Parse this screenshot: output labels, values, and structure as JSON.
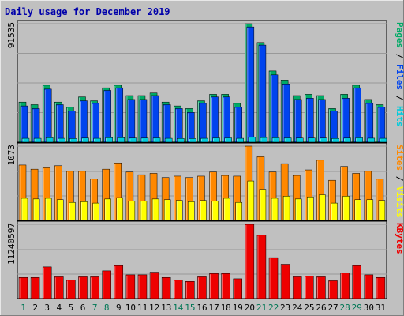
{
  "chart_data": {
    "type": "bar",
    "title": "Daily usage for December 2019",
    "categories": [
      "1",
      "2",
      "3",
      "4",
      "5",
      "6",
      "7",
      "8",
      "9",
      "10",
      "11",
      "12",
      "13",
      "14",
      "15",
      "16",
      "17",
      "18",
      "19",
      "20",
      "21",
      "22",
      "23",
      "24",
      "25",
      "26",
      "27",
      "28",
      "29",
      "30",
      "31"
    ],
    "weekend_days": [
      "1",
      "7",
      "8",
      "14",
      "15",
      "21",
      "22",
      "28",
      "29"
    ],
    "colors": {
      "background": "#c0c0c0",
      "hits": "#00ccdd",
      "files": "#0044ee",
      "pages": "#00aa66",
      "visits": "#ffff00",
      "sites": "#ff8800",
      "kbytes": "#ee0000",
      "title": "#0000aa",
      "weekend_label": "#007755",
      "weekday_label": "#000000"
    },
    "panels": [
      {
        "name": "hits-files-pages",
        "ymax_label": "91535",
        "ylim": [
          0,
          91535
        ],
        "side_labels": [
          {
            "text": "Pages",
            "color": "#00aa66"
          },
          {
            "text": " / ",
            "color": "#000000"
          },
          {
            "text": "Files",
            "color": "#0044ee"
          },
          {
            "text": " / ",
            "color": "#000000"
          },
          {
            "text": "Hits",
            "color": "#00ccdd"
          }
        ],
        "series": [
          {
            "name": "Pages",
            "values": [
              31000,
              29000,
              44000,
              31000,
              27000,
              35000,
              32000,
              42000,
              44000,
              36000,
              36000,
              38000,
              31000,
              28000,
              26000,
              32000,
              37000,
              37000,
              30000,
              91535,
              77000,
              55000,
              48000,
              36000,
              37000,
              36000,
              26000,
              37000,
              44000,
              33000,
              29000
            ]
          },
          {
            "name": "Files",
            "values": [
              28000,
              26000,
              41000,
              29000,
              24000,
              32000,
              30000,
              40000,
              42000,
              33000,
              33000,
              36000,
              29000,
              26000,
              23000,
              30000,
              35000,
              35000,
              27000,
              89000,
              75000,
              52000,
              45000,
              33000,
              34000,
              33000,
              24000,
              34000,
              42000,
              30000,
              27000
            ]
          },
          {
            "name": "Hits",
            "values": [
              3000,
              3000,
              3500,
              3000,
              2800,
              3200,
              3000,
              3500,
              3500,
              3200,
              3200,
              3300,
              3000,
              2900,
              2800,
              3000,
              3300,
              3300,
              3000,
              3800,
              3600,
              3400,
              3300,
              3200,
              3200,
              3200,
              2900,
              3200,
              3400,
              3100,
              3000
            ]
          }
        ]
      },
      {
        "name": "visits-sites",
        "ymax_label": "1073",
        "ylim": [
          0,
          1073
        ],
        "side_labels": [
          {
            "text": "Sites",
            "color": "#ff8800"
          },
          {
            "text": " / ",
            "color": "#000000"
          },
          {
            "text": "Visits",
            "color": "#ffff00"
          }
        ],
        "series": [
          {
            "name": "Sites",
            "values": [
              800,
              740,
              760,
              790,
              710,
              710,
              600,
              740,
              830,
              700,
              660,
              680,
              620,
              640,
              620,
              640,
              700,
              650,
              640,
              1073,
              920,
              700,
              820,
              650,
              730,
              870,
              580,
              780,
              680,
              710,
              600
            ]
          },
          {
            "name": "Visits",
            "values": [
              320,
              310,
              320,
              300,
              260,
              270,
              250,
              310,
              330,
              280,
              280,
              310,
              300,
              290,
              270,
              290,
              280,
              320,
              260,
              570,
              450,
              320,
              350,
              310,
              340,
              370,
              250,
              350,
              300,
              300,
              290
            ]
          }
        ]
      },
      {
        "name": "kbytes",
        "ymax_label": "11240597",
        "ylim": [
          0,
          11240597
        ],
        "side_labels": [
          {
            "text": "KBytes",
            "color": "#ee0000"
          }
        ],
        "series": [
          {
            "name": "KBytes",
            "values": [
              3200000,
              3200000,
              4800000,
              3300000,
              2800000,
              3300000,
              3300000,
              4200000,
              5000000,
              3600000,
              3600000,
              4000000,
              3200000,
              2800000,
              2600000,
              3300000,
              3800000,
              3800000,
              3000000,
              11240597,
              9600000,
              6200000,
              5200000,
              3300000,
              3400000,
              3300000,
              2700000,
              3900000,
              5000000,
              3600000,
              3200000
            ]
          }
        ]
      }
    ]
  }
}
